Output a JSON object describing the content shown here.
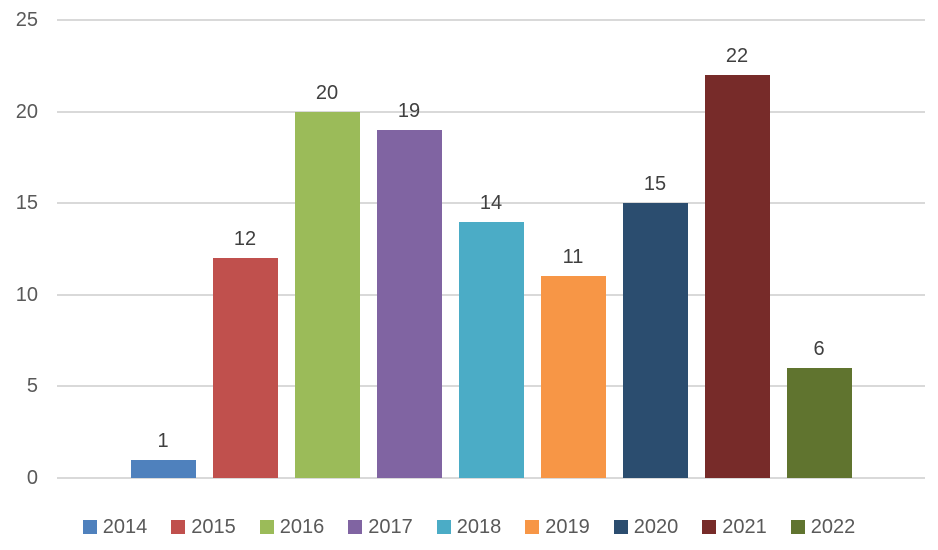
{
  "chart_data": {
    "type": "bar",
    "title": "",
    "xlabel": "",
    "ylabel": "",
    "categories": [
      "2014",
      "2015",
      "2016",
      "2017",
      "2018",
      "2019",
      "2020",
      "2021",
      "2022"
    ],
    "values": [
      1,
      12,
      20,
      19,
      14,
      11,
      15,
      22,
      6
    ],
    "colors": [
      "#4F81BD",
      "#C0504D",
      "#9BBB59",
      "#8064A2",
      "#4BACC6",
      "#F79646",
      "#2B4D6F",
      "#772B29",
      "#60742F"
    ],
    "ylim": [
      0,
      25
    ],
    "y_ticks": [
      0,
      5,
      10,
      15,
      20,
      25
    ],
    "grid": true,
    "data_labels_shown": true,
    "legend_position": "bottom",
    "legend_entries": [
      "2014",
      "2015",
      "2016",
      "2017",
      "2018",
      "2019",
      "2020",
      "2021",
      "2022"
    ]
  },
  "styles": {
    "background": "#FFFFFF",
    "grid_color": "#D9D9D9",
    "axis_label_color": "#595959",
    "data_label_color": "#404040",
    "legend_text_color": "#595959"
  }
}
